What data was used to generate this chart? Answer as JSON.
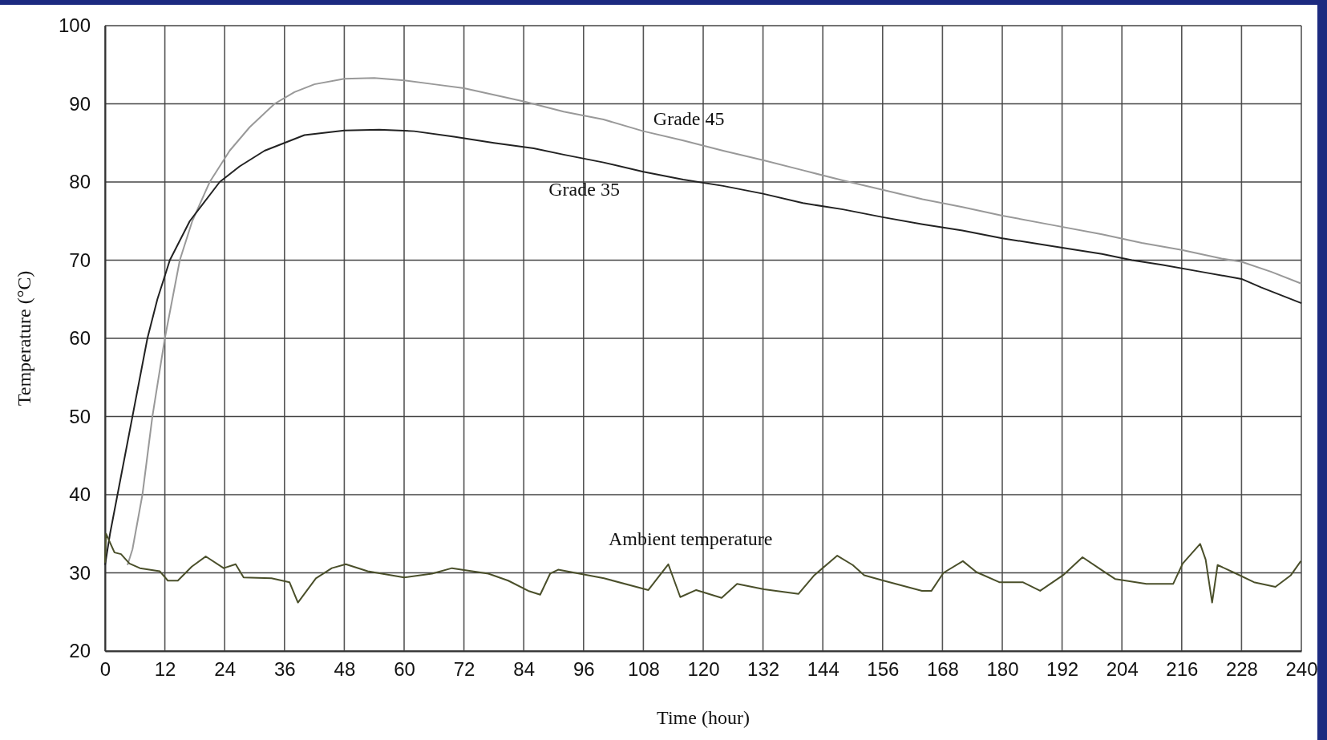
{
  "chart_data": {
    "type": "line",
    "xlabel": "Time (hour)",
    "ylabel": "Temperature (°C)",
    "xlim": [
      0,
      240
    ],
    "xticks": [
      0,
      12,
      24,
      36,
      48,
      60,
      72,
      84,
      96,
      108,
      120,
      132,
      144,
      156,
      168,
      180,
      192,
      204,
      216,
      228,
      240
    ],
    "ylim": [
      20,
      100
    ],
    "yticks": [
      20,
      30,
      40,
      50,
      60,
      70,
      80,
      90,
      100
    ],
    "grid": true,
    "line_style": "solid",
    "marker": "none",
    "series": [
      {
        "name": "Grade 45",
        "color": "#999999",
        "x": [
          4.5,
          5.5,
          7.5,
          9.5,
          12,
          15,
          17.5,
          21,
          25,
          29,
          34,
          38,
          42,
          48,
          54,
          60,
          66,
          72,
          84,
          92,
          100,
          108,
          116,
          124,
          132,
          140,
          148,
          156,
          164,
          172,
          180,
          190,
          200,
          208,
          216,
          224,
          228,
          234,
          240
        ],
        "values": [
          31,
          33,
          40,
          50,
          60,
          70,
          75,
          80,
          84,
          87,
          90,
          91.5,
          92.5,
          93.2,
          93.3,
          93,
          92.5,
          92,
          90.3,
          89,
          88,
          86.5,
          85.3,
          84,
          82.8,
          81.5,
          80.2,
          79,
          77.8,
          76.8,
          75.7,
          74.5,
          73.3,
          72.2,
          71.3,
          70.2,
          69.8,
          68.5,
          67
        ]
      },
      {
        "name": "Grade 35",
        "color": "#222222",
        "x": [
          0,
          1,
          4,
          7,
          8.5,
          10.5,
          13,
          17,
          23,
          27,
          32,
          36,
          40,
          48,
          55,
          62,
          70,
          78,
          86,
          92,
          100,
          108,
          116,
          124,
          132,
          140,
          148,
          156,
          164,
          172,
          180,
          190,
          200,
          206,
          212,
          220,
          228,
          232,
          236,
          240
        ],
        "values": [
          31,
          35,
          45,
          55,
          60,
          65,
          70,
          75,
          80,
          82,
          84,
          85,
          86,
          86.6,
          86.7,
          86.5,
          85.8,
          85,
          84.3,
          83.5,
          82.5,
          81.3,
          80.3,
          79.5,
          78.5,
          77.3,
          76.5,
          75.5,
          74.6,
          73.8,
          72.8,
          71.8,
          70.8,
          70,
          69.4,
          68.5,
          67.6,
          66.5,
          65.5,
          64.5
        ]
      },
      {
        "name": "Ambient temperature",
        "color": "#4a4f2a",
        "x": [
          0,
          0.2,
          1.9,
          3.2,
          4.9,
          7,
          11,
          12.6,
          14.6,
          17.4,
          20.2,
          23.8,
          26.2,
          27.8,
          33.4,
          37,
          38.7,
          42.3,
          45.5,
          48.3,
          52.7,
          60,
          65.6,
          69.6,
          76.9,
          80.9,
          84.9,
          87.3,
          89.3,
          90.9,
          100.1,
          109,
          113,
          115.4,
          118.6,
          123.7,
          126.8,
          132.2,
          139.1,
          142.3,
          146.9,
          150,
          152.3,
          156.2,
          163.9,
          165.8,
          168.2,
          172.1,
          174.8,
          179.4,
          184.1,
          187.6,
          192.2,
          196.1,
          199.6,
          202.7,
          208.9,
          214.3,
          216.2,
          219.7,
          220.8,
          222.1,
          223.2,
          226.6,
          230.5,
          234.8,
          237.9,
          239.9
        ],
        "values": [
          31.3,
          35,
          32.6,
          32.4,
          31.2,
          30.6,
          30.2,
          29,
          29,
          30.8,
          32.1,
          30.6,
          31.1,
          29.4,
          29.3,
          28.8,
          26.2,
          29.3,
          30.6,
          31.1,
          30.2,
          29.4,
          29.9,
          30.6,
          29.9,
          29,
          27.7,
          27.2,
          29.9,
          30.4,
          29.3,
          27.8,
          31.1,
          26.9,
          27.8,
          26.8,
          28.6,
          27.9,
          27.3,
          29.7,
          32.2,
          31,
          29.7,
          29,
          27.7,
          27.7,
          30,
          31.5,
          30.1,
          28.8,
          28.8,
          27.7,
          29.7,
          32,
          30.5,
          29.2,
          28.6,
          28.6,
          31.2,
          33.7,
          31.7,
          26.2,
          31,
          30,
          28.8,
          28.2,
          29.7,
          31.5
        ]
      }
    ]
  }
}
